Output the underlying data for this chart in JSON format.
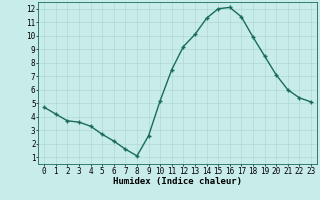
{
  "x": [
    0,
    1,
    2,
    3,
    4,
    5,
    6,
    7,
    8,
    9,
    10,
    11,
    12,
    13,
    14,
    15,
    16,
    17,
    18,
    19,
    20,
    21,
    22,
    23
  ],
  "y": [
    4.7,
    4.2,
    3.7,
    3.6,
    3.3,
    2.7,
    2.2,
    1.6,
    1.1,
    2.6,
    5.2,
    7.5,
    9.2,
    10.1,
    11.3,
    12.0,
    12.1,
    11.4,
    9.9,
    8.5,
    7.1,
    6.0,
    5.4,
    5.1
  ],
  "line_color": "#1a6b5a",
  "marker": "+",
  "marker_size": 3,
  "bg_color": "#c8ecea",
  "grid_color": "#b0d8d4",
  "xlabel": "Humidex (Indice chaleur)",
  "xlim": [
    -0.5,
    23.5
  ],
  "ylim": [
    0.5,
    12.5
  ],
  "yticks": [
    1,
    2,
    3,
    4,
    5,
    6,
    7,
    8,
    9,
    10,
    11,
    12
  ],
  "xticks": [
    0,
    1,
    2,
    3,
    4,
    5,
    6,
    7,
    8,
    9,
    10,
    11,
    12,
    13,
    14,
    15,
    16,
    17,
    18,
    19,
    20,
    21,
    22,
    23
  ],
  "tick_label_fontsize": 5.5,
  "xlabel_fontsize": 6.5,
  "line_width": 1.0,
  "marker_color": "#1a6b5a"
}
